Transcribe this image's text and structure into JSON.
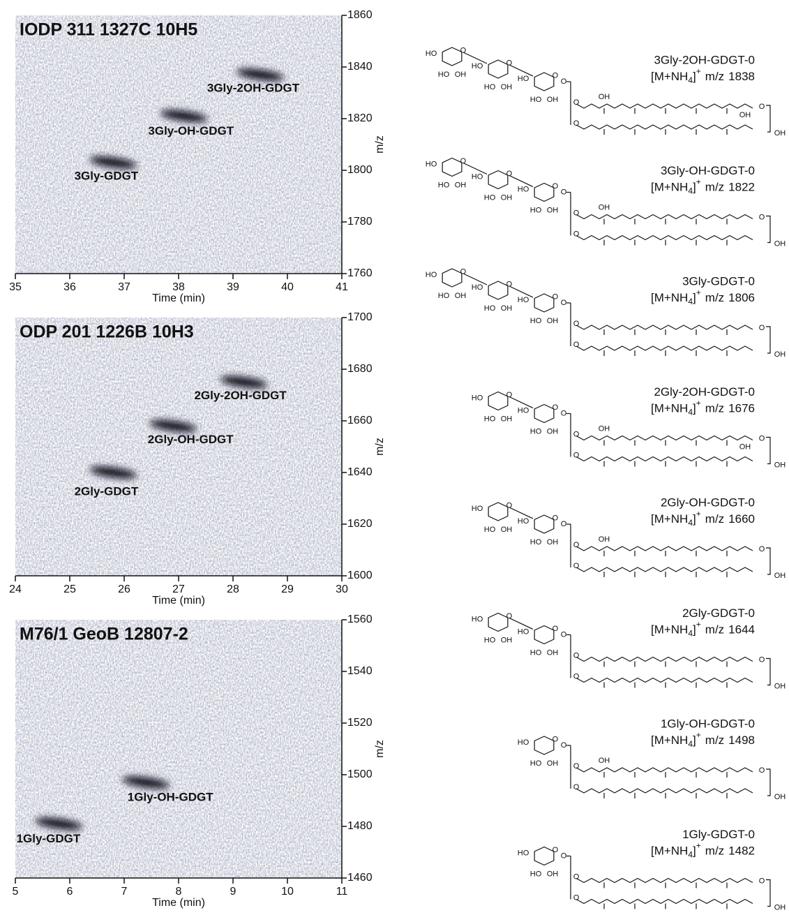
{
  "chart_data": [
    {
      "type": "density",
      "title": "IODP 311 1327C 10H5",
      "xlabel": "Time (min)",
      "ylabel": "m/z",
      "xlim": [
        35,
        41
      ],
      "xticks": [
        35,
        36,
        37,
        38,
        39,
        40,
        41
      ],
      "ylim": [
        1760,
        1860
      ],
      "yticks": [
        1760,
        1780,
        1800,
        1820,
        1840,
        1860
      ],
      "series": [
        {
          "name": "3Gly-2OH-GDGT",
          "x": [
            39.5
          ],
          "values": [
            1837
          ]
        },
        {
          "name": "3Gly-OH-GDGT",
          "x": [
            38.1
          ],
          "values": [
            1821
          ]
        },
        {
          "name": "3Gly-GDGT",
          "x": [
            36.8
          ],
          "values": [
            1803
          ]
        }
      ]
    },
    {
      "type": "density",
      "title": "ODP 201 1226B 10H3",
      "xlabel": "Time (min)",
      "ylabel": "m/z",
      "xlim": [
        24,
        30
      ],
      "xticks": [
        24,
        25,
        26,
        27,
        28,
        29,
        30
      ],
      "ylim": [
        1600,
        1700
      ],
      "yticks": [
        1600,
        1620,
        1640,
        1660,
        1680,
        1700
      ],
      "series": [
        {
          "name": "2Gly-2OH-GDGT",
          "x": [
            28.2
          ],
          "values": [
            1675
          ]
        },
        {
          "name": "2Gly-OH-GDGT",
          "x": [
            26.9
          ],
          "values": [
            1658
          ]
        },
        {
          "name": "2Gly-GDGT",
          "x": [
            25.8
          ],
          "values": [
            1640
          ]
        }
      ]
    },
    {
      "type": "density",
      "title": "M76/1 GeoB 12807-2",
      "xlabel": "Time (min)",
      "ylabel": "m/z",
      "xlim": [
        5,
        11
      ],
      "xticks": [
        5,
        6,
        7,
        8,
        9,
        10,
        11
      ],
      "ylim": [
        1460,
        1560
      ],
      "yticks": [
        1460,
        1480,
        1500,
        1520,
        1540,
        1560
      ],
      "series": [
        {
          "name": "1Gly-OH-GDGT",
          "x": [
            7.4
          ],
          "values": [
            1497
          ]
        },
        {
          "name": "1Gly-GDGT",
          "x": [
            5.8
          ],
          "values": [
            1481
          ]
        }
      ]
    }
  ],
  "structures": {
    "items": [
      {
        "name": "3Gly-2OH-GDGT-0",
        "mz": 1838
      },
      {
        "name": "3Gly-OH-GDGT-0",
        "mz": 1822
      },
      {
        "name": "3Gly-GDGT-0",
        "mz": 1806
      },
      {
        "name": "2Gly-2OH-GDGT-0",
        "mz": 1676
      },
      {
        "name": "2Gly-OH-GDGT-0",
        "mz": 1660
      },
      {
        "name": "2Gly-GDGT-0",
        "mz": 1644
      },
      {
        "name": "1Gly-OH-GDGT-0",
        "mz": 1498
      },
      {
        "name": "1Gly-GDGT-0",
        "mz": 1482
      }
    ],
    "adduct": {
      "open": "[M+NH",
      "sub": "4",
      "close": "]",
      "sup": "+"
    },
    "mz_label": "m/z",
    "atoms": {
      "ho": "HO",
      "oh": "OH",
      "o": "O"
    }
  }
}
